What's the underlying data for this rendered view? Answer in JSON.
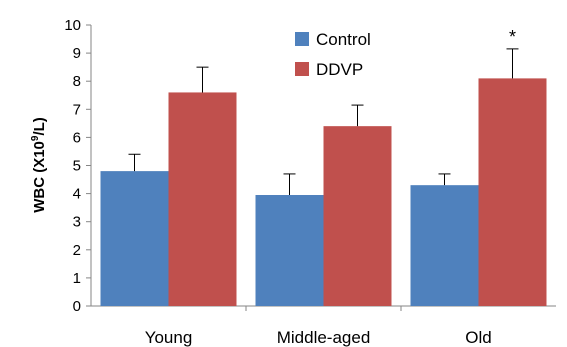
{
  "chart_data": {
    "type": "bar",
    "categories": [
      "Young",
      "Middle-aged",
      "Old"
    ],
    "series": [
      {
        "name": "Control",
        "color": "#4f81bd",
        "values": [
          4.8,
          3.95,
          4.3
        ],
        "errors": [
          0.6,
          0.75,
          0.4
        ]
      },
      {
        "name": "DDVP",
        "color": "#c0504d",
        "values": [
          7.6,
          6.4,
          8.1
        ],
        "errors": [
          0.9,
          0.75,
          1.05
        ]
      }
    ],
    "ylabel_main": "WBC (X10",
    "ylabel_sup": "9",
    "ylabel_tail": "/L)",
    "ylim": [
      0,
      10
    ],
    "yticks": [
      "0",
      "1",
      "2",
      "3",
      "4",
      "5",
      "6",
      "7",
      "8",
      "9",
      "10"
    ],
    "legend_position": "top-center",
    "grid": false,
    "annotations": [
      {
        "category": "Old",
        "series": "DDVP",
        "text": "*"
      }
    ]
  }
}
